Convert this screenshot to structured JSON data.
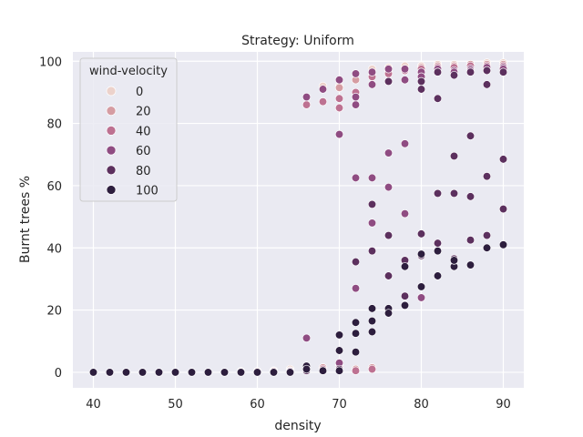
{
  "chart_data": {
    "type": "scatter",
    "title": "Strategy: Uniform",
    "xlabel": "density",
    "ylabel": "Burnt trees %",
    "xlim": [
      37.5,
      92.5
    ],
    "ylim": [
      -5,
      103
    ],
    "xticks": [
      40,
      50,
      60,
      70,
      80,
      90
    ],
    "yticks": [
      0,
      20,
      40,
      60,
      80,
      100
    ],
    "grid": true,
    "legend": {
      "title": "wind-velocity",
      "placement": "top-left",
      "entries": [
        {
          "label": "0",
          "color": "#ecd2cb"
        },
        {
          "label": "20",
          "color": "#d59ca2"
        },
        {
          "label": "40",
          "color": "#bd7191"
        },
        {
          "label": "60",
          "color": "#8f4c82"
        },
        {
          "label": "80",
          "color": "#5c305e"
        },
        {
          "label": "100",
          "color": "#2d1e3e"
        }
      ]
    },
    "series": [
      {
        "name": "0",
        "color": "#ecd2cb",
        "points": [
          [
            40,
            0
          ],
          [
            42,
            0
          ],
          [
            44,
            0
          ],
          [
            46,
            0
          ],
          [
            48,
            0
          ],
          [
            50,
            0
          ],
          [
            52,
            0
          ],
          [
            54,
            0
          ],
          [
            56,
            0
          ],
          [
            58,
            0.3
          ],
          [
            60,
            0.3
          ],
          [
            62,
            0.5
          ],
          [
            64,
            1
          ],
          [
            66,
            0.5
          ],
          [
            68,
            1.5
          ],
          [
            70,
            2
          ],
          [
            68,
            92
          ],
          [
            70,
            92
          ],
          [
            72,
            96
          ],
          [
            74,
            97.5
          ],
          [
            76,
            98
          ],
          [
            78,
            98.5
          ],
          [
            80,
            98.5
          ],
          [
            82,
            99
          ],
          [
            84,
            99
          ],
          [
            86,
            99
          ],
          [
            88,
            99.5
          ],
          [
            90,
            99.5
          ]
        ]
      },
      {
        "name": "20",
        "color": "#d59ca2",
        "points": [
          [
            40,
            0
          ],
          [
            42,
            0
          ],
          [
            44,
            0
          ],
          [
            46,
            0
          ],
          [
            48,
            0
          ],
          [
            50,
            0
          ],
          [
            52,
            0
          ],
          [
            54,
            0
          ],
          [
            56,
            0
          ],
          [
            58,
            0
          ],
          [
            60,
            0.3
          ],
          [
            62,
            0.5
          ],
          [
            64,
            0.5
          ],
          [
            66,
            1
          ],
          [
            68,
            1.5
          ],
          [
            70,
            1.5
          ],
          [
            72,
            1
          ],
          [
            74,
            1.5
          ],
          [
            70,
            91.5
          ],
          [
            72,
            94
          ],
          [
            74,
            96
          ],
          [
            76,
            97
          ],
          [
            78,
            97.5
          ],
          [
            80,
            98
          ],
          [
            82,
            98.5
          ],
          [
            84,
            98.5
          ],
          [
            86,
            99
          ],
          [
            88,
            99
          ],
          [
            90,
            99
          ]
        ]
      },
      {
        "name": "40",
        "color": "#bd7191",
        "points": [
          [
            40,
            0
          ],
          [
            42,
            0
          ],
          [
            44,
            0
          ],
          [
            46,
            0
          ],
          [
            48,
            0
          ],
          [
            50,
            0
          ],
          [
            52,
            0
          ],
          [
            54,
            0
          ],
          [
            56,
            0
          ],
          [
            58,
            0
          ],
          [
            60,
            0
          ],
          [
            62,
            0.3
          ],
          [
            64,
            0.5
          ],
          [
            66,
            1
          ],
          [
            68,
            1
          ],
          [
            70,
            1.5
          ],
          [
            72,
            0.5
          ],
          [
            74,
            1
          ],
          [
            66,
            86
          ],
          [
            68,
            87
          ],
          [
            70,
            88
          ],
          [
            70,
            85
          ],
          [
            72,
            90
          ],
          [
            74,
            95
          ],
          [
            76,
            96
          ],
          [
            78,
            97
          ],
          [
            80,
            97.5
          ],
          [
            82,
            98
          ],
          [
            84,
            98
          ],
          [
            86,
            98.5
          ],
          [
            88,
            98.5
          ],
          [
            90,
            98.5
          ]
        ]
      },
      {
        "name": "60",
        "color": "#8f4c82",
        "points": [
          [
            40,
            0
          ],
          [
            42,
            0
          ],
          [
            44,
            0
          ],
          [
            46,
            0
          ],
          [
            48,
            0
          ],
          [
            50,
            0
          ],
          [
            52,
            0
          ],
          [
            54,
            0
          ],
          [
            56,
            0
          ],
          [
            58,
            0
          ],
          [
            60,
            0
          ],
          [
            62,
            0
          ],
          [
            64,
            0.3
          ],
          [
            66,
            11
          ],
          [
            68,
            0.5
          ],
          [
            70,
            3
          ],
          [
            72,
            27
          ],
          [
            66,
            88.5
          ],
          [
            68,
            91
          ],
          [
            70,
            94
          ],
          [
            72,
            96
          ],
          [
            74,
            96.5
          ],
          [
            76,
            97.5
          ],
          [
            78,
            97.5
          ],
          [
            80,
            96.5
          ],
          [
            82,
            97.5
          ],
          [
            84,
            97
          ],
          [
            86,
            97.5
          ],
          [
            88,
            98
          ],
          [
            90,
            98
          ],
          [
            70,
            76.5
          ],
          [
            72,
            86
          ],
          [
            72,
            88.5
          ],
          [
            74,
            92.5
          ],
          [
            76,
            93.5
          ],
          [
            78,
            94
          ],
          [
            80,
            95
          ],
          [
            82,
            96.5
          ],
          [
            84,
            96.5
          ],
          [
            86,
            97
          ],
          [
            88,
            97
          ],
          [
            90,
            97.5
          ],
          [
            72,
            62.5
          ],
          [
            74,
            62.5
          ],
          [
            74,
            48
          ],
          [
            76,
            70.5
          ],
          [
            78,
            73.5
          ],
          [
            78,
            51
          ],
          [
            76,
            59.5
          ],
          [
            80,
            24
          ]
        ]
      },
      {
        "name": "80",
        "color": "#5c305e",
        "points": [
          [
            40,
            0
          ],
          [
            42,
            0
          ],
          [
            44,
            0
          ],
          [
            46,
            0
          ],
          [
            48,
            0
          ],
          [
            50,
            0
          ],
          [
            52,
            0
          ],
          [
            54,
            0
          ],
          [
            56,
            0
          ],
          [
            58,
            0
          ],
          [
            60,
            0
          ],
          [
            62,
            0
          ],
          [
            64,
            0
          ],
          [
            66,
            0.5
          ],
          [
            68,
            0.5
          ],
          [
            70,
            1
          ],
          [
            72,
            35.5
          ],
          [
            74,
            54
          ],
          [
            74,
            39
          ],
          [
            76,
            44
          ],
          [
            76,
            31
          ],
          [
            78,
            36
          ],
          [
            78,
            24.5
          ],
          [
            80,
            44.5
          ],
          [
            80,
            37.5
          ],
          [
            82,
            41.5
          ],
          [
            82,
            57.5
          ],
          [
            84,
            57.5
          ],
          [
            84,
            69.5
          ],
          [
            84,
            36.5
          ],
          [
            86,
            76
          ],
          [
            86,
            56.5
          ],
          [
            86,
            42.5
          ],
          [
            88,
            63
          ],
          [
            88,
            44
          ],
          [
            88,
            92.5
          ],
          [
            90,
            68.5
          ],
          [
            90,
            52.5
          ],
          [
            80,
            91
          ],
          [
            82,
            88
          ],
          [
            84,
            95.5
          ],
          [
            86,
            96.5
          ],
          [
            88,
            97
          ],
          [
            90,
            96.5
          ],
          [
            82,
            96.5
          ],
          [
            80,
            93.5
          ],
          [
            76,
            93.5
          ]
        ]
      },
      {
        "name": "100",
        "color": "#2d1e3e",
        "points": [
          [
            40,
            0
          ],
          [
            42,
            0
          ],
          [
            44,
            0
          ],
          [
            46,
            0
          ],
          [
            48,
            0
          ],
          [
            50,
            0
          ],
          [
            52,
            0
          ],
          [
            54,
            0
          ],
          [
            56,
            0
          ],
          [
            58,
            0
          ],
          [
            60,
            0
          ],
          [
            62,
            0
          ],
          [
            64,
            0
          ],
          [
            66,
            2
          ],
          [
            66,
            1
          ],
          [
            68,
            0.5
          ],
          [
            70,
            0.5
          ],
          [
            70,
            12
          ],
          [
            70,
            7
          ],
          [
            72,
            16
          ],
          [
            72,
            12.5
          ],
          [
            72,
            6.5
          ],
          [
            74,
            20.5
          ],
          [
            74,
            16.5
          ],
          [
            74,
            13
          ],
          [
            76,
            20.5
          ],
          [
            76,
            19
          ],
          [
            78,
            21.5
          ],
          [
            78,
            34
          ],
          [
            80,
            27.5
          ],
          [
            80,
            38
          ],
          [
            82,
            31
          ],
          [
            82,
            39
          ],
          [
            84,
            34
          ],
          [
            84,
            36
          ],
          [
            86,
            34.5
          ],
          [
            88,
            40
          ],
          [
            90,
            41
          ]
        ]
      }
    ]
  }
}
